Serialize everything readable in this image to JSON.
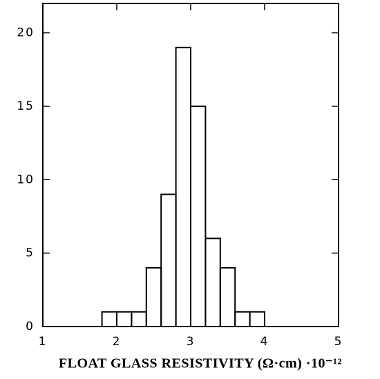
{
  "chart_data": {
    "type": "histogram",
    "xlabel": "FLOAT GLASS RESISTIVITY (Ω·cm) ·10⁻¹²",
    "bins": [
      1.8,
      2.0,
      2.2,
      2.4,
      2.6,
      2.8,
      3.0,
      3.2,
      3.4,
      3.6,
      3.8,
      4.0
    ],
    "values": [
      1,
      1,
      1,
      4,
      9,
      19,
      15,
      6,
      4,
      1,
      1
    ],
    "color": "#000000",
    "xlim": [
      1,
      5
    ],
    "xticks": [
      1,
      2,
      3,
      4,
      5
    ],
    "ylim": [
      0,
      22
    ],
    "yticks": [
      0,
      5,
      10,
      15,
      20
    ]
  }
}
